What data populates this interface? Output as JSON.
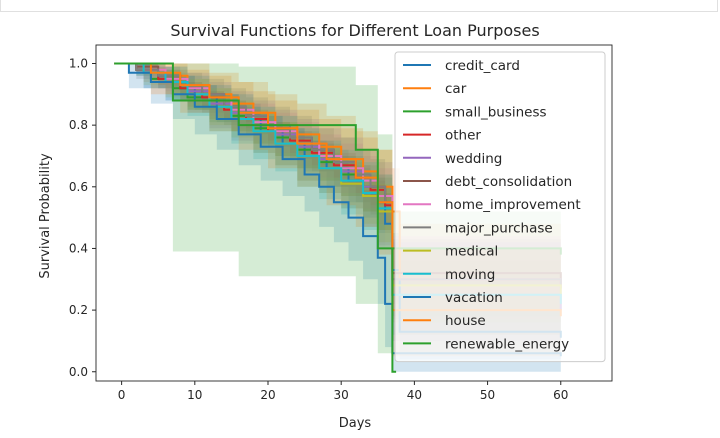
{
  "chart_data": {
    "type": "line",
    "title": "Survival Functions for Different Loan Purposes",
    "xlabel": "Days",
    "ylabel": "Survival Probability",
    "xlim": [
      -3.5,
      67
    ],
    "ylim": [
      -0.03,
      1.06
    ],
    "xticks": [
      0,
      10,
      20,
      30,
      40,
      50,
      60
    ],
    "yticks": [
      0.0,
      0.2,
      0.4,
      0.6,
      0.8,
      1.0
    ],
    "xtick_labels": [
      "0",
      "10",
      "20",
      "30",
      "40",
      "50",
      "60"
    ],
    "ytick_labels": [
      "0.0",
      "0.2",
      "0.4",
      "0.6",
      "0.8",
      "1.0"
    ],
    "step": true,
    "confidence_bands": true,
    "legend_position": "upper right",
    "series": [
      {
        "name": "credit_card",
        "color": "#1f77b4",
        "x": [
          -1,
          2,
          5,
          8,
          10,
          13,
          16,
          19,
          22,
          25,
          28,
          31,
          33,
          35,
          36,
          37,
          38,
          60
        ],
        "y": [
          1.0,
          0.98,
          0.95,
          0.92,
          0.89,
          0.86,
          0.82,
          0.78,
          0.74,
          0.7,
          0.66,
          0.62,
          0.58,
          0.55,
          0.48,
          0.33,
          0.13,
          0.11
        ],
        "lo": [
          1.0,
          0.96,
          0.92,
          0.88,
          0.85,
          0.81,
          0.77,
          0.73,
          0.69,
          0.65,
          0.6,
          0.55,
          0.5,
          0.45,
          0.38,
          0.22,
          0.04,
          0.02
        ],
        "hi": [
          1.0,
          1.0,
          0.98,
          0.96,
          0.93,
          0.9,
          0.87,
          0.83,
          0.79,
          0.75,
          0.72,
          0.68,
          0.65,
          0.63,
          0.58,
          0.45,
          0.25,
          0.23
        ]
      },
      {
        "name": "car",
        "color": "#ff7f0e",
        "x": [
          -1,
          3,
          6,
          9,
          12,
          15,
          18,
          21,
          24,
          27,
          30,
          33,
          35,
          37,
          38,
          60
        ],
        "y": [
          1.0,
          0.98,
          0.96,
          0.93,
          0.9,
          0.87,
          0.84,
          0.8,
          0.77,
          0.73,
          0.69,
          0.65,
          0.6,
          0.52,
          0.3,
          0.28
        ],
        "lo": [
          1.0,
          0.94,
          0.9,
          0.86,
          0.82,
          0.78,
          0.74,
          0.7,
          0.66,
          0.62,
          0.57,
          0.52,
          0.46,
          0.36,
          0.12,
          0.1
        ],
        "hi": [
          1.0,
          1.0,
          1.0,
          0.98,
          0.96,
          0.94,
          0.91,
          0.88,
          0.85,
          0.82,
          0.79,
          0.76,
          0.72,
          0.66,
          0.48,
          0.45
        ]
      },
      {
        "name": "small_business",
        "color": "#2ca02c",
        "x": [
          -1,
          2,
          4,
          7,
          9,
          12,
          15,
          18,
          21,
          24,
          27,
          30,
          33,
          35,
          37,
          60
        ],
        "y": [
          1.0,
          0.98,
          0.95,
          0.92,
          0.89,
          0.86,
          0.83,
          0.79,
          0.76,
          0.72,
          0.68,
          0.64,
          0.6,
          0.55,
          0.4,
          0.38
        ],
        "lo": [
          1.0,
          0.96,
          0.92,
          0.88,
          0.85,
          0.81,
          0.78,
          0.74,
          0.7,
          0.66,
          0.62,
          0.57,
          0.52,
          0.46,
          0.28,
          0.26
        ],
        "hi": [
          1.0,
          1.0,
          0.98,
          0.96,
          0.93,
          0.9,
          0.87,
          0.84,
          0.81,
          0.78,
          0.74,
          0.7,
          0.67,
          0.63,
          0.52,
          0.5
        ]
      },
      {
        "name": "other",
        "color": "#d62728",
        "x": [
          -1,
          2,
          5,
          8,
          11,
          14,
          17,
          20,
          23,
          26,
          29,
          32,
          34,
          36,
          37,
          60
        ],
        "y": [
          1.0,
          0.98,
          0.95,
          0.92,
          0.89,
          0.85,
          0.82,
          0.78,
          0.75,
          0.71,
          0.67,
          0.63,
          0.59,
          0.54,
          0.3,
          0.28
        ],
        "lo": [
          1.0,
          0.97,
          0.93,
          0.9,
          0.86,
          0.82,
          0.79,
          0.75,
          0.71,
          0.67,
          0.63,
          0.58,
          0.54,
          0.48,
          0.2,
          0.18
        ],
        "hi": [
          1.0,
          1.0,
          0.97,
          0.94,
          0.91,
          0.88,
          0.85,
          0.81,
          0.78,
          0.75,
          0.71,
          0.67,
          0.64,
          0.6,
          0.4,
          0.38
        ]
      },
      {
        "name": "wedding",
        "color": "#9467bd",
        "x": [
          -1,
          3,
          6,
          9,
          12,
          15,
          18,
          21,
          24,
          27,
          30,
          33,
          35,
          37,
          60
        ],
        "y": [
          1.0,
          0.97,
          0.94,
          0.91,
          0.87,
          0.84,
          0.8,
          0.77,
          0.73,
          0.69,
          0.65,
          0.6,
          0.55,
          0.25,
          0.2
        ],
        "lo": [
          1.0,
          0.92,
          0.88,
          0.84,
          0.79,
          0.75,
          0.71,
          0.67,
          0.62,
          0.58,
          0.53,
          0.47,
          0.41,
          0.1,
          0.06
        ],
        "hi": [
          1.0,
          1.0,
          0.99,
          0.97,
          0.94,
          0.91,
          0.88,
          0.85,
          0.82,
          0.79,
          0.76,
          0.72,
          0.68,
          0.42,
          0.36
        ]
      },
      {
        "name": "debt_consolidation",
        "color": "#8c564b",
        "x": [
          -1,
          2,
          5,
          8,
          11,
          14,
          17,
          20,
          23,
          26,
          29,
          32,
          34,
          36,
          37,
          60
        ],
        "y": [
          1.0,
          0.99,
          0.96,
          0.93,
          0.9,
          0.86,
          0.83,
          0.79,
          0.76,
          0.72,
          0.68,
          0.64,
          0.6,
          0.55,
          0.32,
          0.3
        ],
        "lo": [
          1.0,
          0.98,
          0.95,
          0.92,
          0.88,
          0.85,
          0.81,
          0.78,
          0.74,
          0.7,
          0.66,
          0.62,
          0.57,
          0.52,
          0.28,
          0.26
        ],
        "hi": [
          1.0,
          1.0,
          0.97,
          0.94,
          0.91,
          0.88,
          0.84,
          0.81,
          0.77,
          0.74,
          0.7,
          0.66,
          0.62,
          0.58,
          0.36,
          0.34
        ]
      },
      {
        "name": "home_improvement",
        "color": "#e377c2",
        "x": [
          -1,
          3,
          6,
          9,
          12,
          15,
          18,
          21,
          24,
          27,
          30,
          33,
          35,
          37,
          60
        ],
        "y": [
          1.0,
          0.98,
          0.95,
          0.92,
          0.88,
          0.85,
          0.81,
          0.78,
          0.74,
          0.7,
          0.66,
          0.62,
          0.57,
          0.3,
          0.27
        ],
        "lo": [
          1.0,
          0.95,
          0.91,
          0.87,
          0.83,
          0.79,
          0.75,
          0.71,
          0.67,
          0.63,
          0.58,
          0.53,
          0.48,
          0.17,
          0.13
        ],
        "hi": [
          1.0,
          1.0,
          0.98,
          0.96,
          0.93,
          0.9,
          0.87,
          0.84,
          0.81,
          0.77,
          0.74,
          0.7,
          0.66,
          0.44,
          0.41
        ]
      },
      {
        "name": "major_purchase",
        "color": "#7f7f7f",
        "x": [
          -1,
          2,
          5,
          8,
          11,
          14,
          17,
          20,
          23,
          26,
          29,
          32,
          34,
          36,
          37,
          60
        ],
        "y": [
          1.0,
          0.98,
          0.96,
          0.93,
          0.9,
          0.86,
          0.83,
          0.8,
          0.76,
          0.72,
          0.68,
          0.64,
          0.6,
          0.55,
          0.3,
          0.27
        ],
        "lo": [
          1.0,
          0.95,
          0.92,
          0.88,
          0.84,
          0.8,
          0.77,
          0.73,
          0.69,
          0.65,
          0.6,
          0.55,
          0.51,
          0.45,
          0.18,
          0.15
        ],
        "hi": [
          1.0,
          1.0,
          0.99,
          0.97,
          0.95,
          0.92,
          0.89,
          0.86,
          0.83,
          0.79,
          0.76,
          0.72,
          0.69,
          0.64,
          0.43,
          0.4
        ]
      },
      {
        "name": "medical",
        "color": "#bcbd22",
        "x": [
          -1,
          3,
          6,
          9,
          12,
          15,
          18,
          21,
          24,
          27,
          30,
          33,
          35,
          37,
          60
        ],
        "y": [
          1.0,
          0.97,
          0.94,
          0.9,
          0.86,
          0.82,
          0.78,
          0.74,
          0.7,
          0.66,
          0.61,
          0.57,
          0.52,
          0.28,
          0.25
        ],
        "lo": [
          1.0,
          0.93,
          0.89,
          0.85,
          0.8,
          0.76,
          0.71,
          0.67,
          0.62,
          0.58,
          0.53,
          0.48,
          0.42,
          0.16,
          0.12
        ],
        "hi": [
          1.0,
          1.0,
          0.98,
          0.95,
          0.92,
          0.88,
          0.85,
          0.81,
          0.77,
          0.73,
          0.69,
          0.65,
          0.61,
          0.4,
          0.37
        ]
      },
      {
        "name": "moving",
        "color": "#17becf",
        "x": [
          -1,
          3,
          6,
          9,
          12,
          15,
          18,
          21,
          24,
          27,
          30,
          33,
          35,
          37,
          60
        ],
        "y": [
          1.0,
          0.97,
          0.94,
          0.9,
          0.86,
          0.82,
          0.78,
          0.74,
          0.7,
          0.66,
          0.62,
          0.58,
          0.53,
          0.25,
          0.22
        ],
        "lo": [
          1.0,
          0.92,
          0.88,
          0.83,
          0.78,
          0.74,
          0.69,
          0.65,
          0.6,
          0.56,
          0.51,
          0.46,
          0.4,
          0.12,
          0.09
        ],
        "hi": [
          1.0,
          1.0,
          0.99,
          0.96,
          0.93,
          0.9,
          0.86,
          0.83,
          0.79,
          0.75,
          0.72,
          0.68,
          0.64,
          0.4,
          0.37
        ]
      },
      {
        "name": "vacation",
        "color": "#1f77b4",
        "x": [
          -1,
          1,
          4,
          7,
          10,
          13,
          16,
          19,
          22,
          25,
          27,
          29,
          31,
          33,
          35,
          36,
          37,
          60
        ],
        "y": [
          1.0,
          0.97,
          0.94,
          0.9,
          0.86,
          0.82,
          0.77,
          0.73,
          0.69,
          0.64,
          0.6,
          0.55,
          0.5,
          0.44,
          0.37,
          0.22,
          0.06,
          0.05
        ],
        "lo": [
          1.0,
          0.92,
          0.87,
          0.82,
          0.77,
          0.72,
          0.67,
          0.62,
          0.57,
          0.52,
          0.47,
          0.42,
          0.36,
          0.3,
          0.22,
          0.08,
          0.0,
          0.0
        ],
        "hi": [
          1.0,
          1.0,
          0.99,
          0.96,
          0.93,
          0.9,
          0.86,
          0.83,
          0.79,
          0.75,
          0.72,
          0.68,
          0.64,
          0.59,
          0.52,
          0.38,
          0.2,
          0.18
        ]
      },
      {
        "name": "house",
        "color": "#ff7f0e",
        "x": [
          -1,
          4,
          8,
          12,
          16,
          20,
          24,
          28,
          32,
          35,
          37,
          60
        ],
        "y": [
          1.0,
          0.97,
          0.93,
          0.89,
          0.84,
          0.79,
          0.74,
          0.69,
          0.63,
          0.55,
          0.2,
          0.18
        ],
        "lo": [
          1.0,
          0.9,
          0.84,
          0.78,
          0.72,
          0.66,
          0.6,
          0.54,
          0.47,
          0.38,
          0.05,
          0.03
        ],
        "hi": [
          1.0,
          1.0,
          1.0,
          0.97,
          0.94,
          0.9,
          0.87,
          0.83,
          0.78,
          0.72,
          0.4,
          0.38
        ]
      },
      {
        "name": "renewable_energy",
        "color": "#2ca02c",
        "x": [
          -1,
          7,
          16,
          32,
          35,
          37,
          37.5
        ],
        "y": [
          1.0,
          0.88,
          0.8,
          0.72,
          0.4,
          0.0,
          0.0
        ],
        "lo": [
          1.0,
          0.39,
          0.31,
          0.22,
          0.06,
          0.0,
          0.0
        ],
        "hi": [
          1.0,
          1.0,
          0.99,
          0.93,
          0.77,
          0.0,
          0.0
        ]
      }
    ]
  }
}
